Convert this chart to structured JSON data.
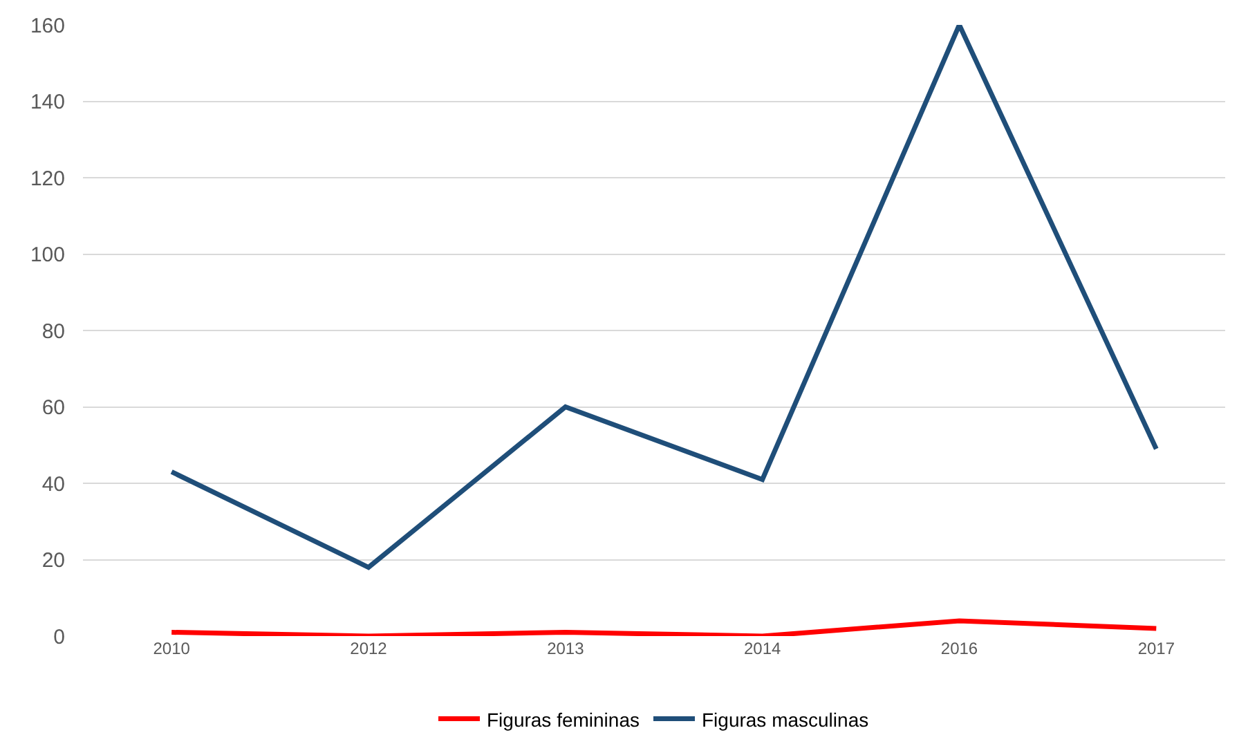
{
  "chart_data": {
    "type": "line",
    "categories": [
      "2010",
      "2012",
      "2013",
      "2014",
      "2016",
      "2017"
    ],
    "series": [
      {
        "name": "Figuras femininas",
        "color": "#ff0000",
        "values": [
          1,
          0,
          1,
          0,
          4,
          2
        ]
      },
      {
        "name": "Figuras masculinas",
        "color": "#1f4e79",
        "values": [
          43,
          18,
          60,
          41,
          160,
          49
        ]
      }
    ],
    "ylim": [
      0,
      160
    ],
    "yticks": [
      0,
      20,
      40,
      60,
      80,
      100,
      120,
      140,
      160
    ],
    "grid": "y",
    "legend": "bottom",
    "marker": "none",
    "line_style": "solid"
  }
}
